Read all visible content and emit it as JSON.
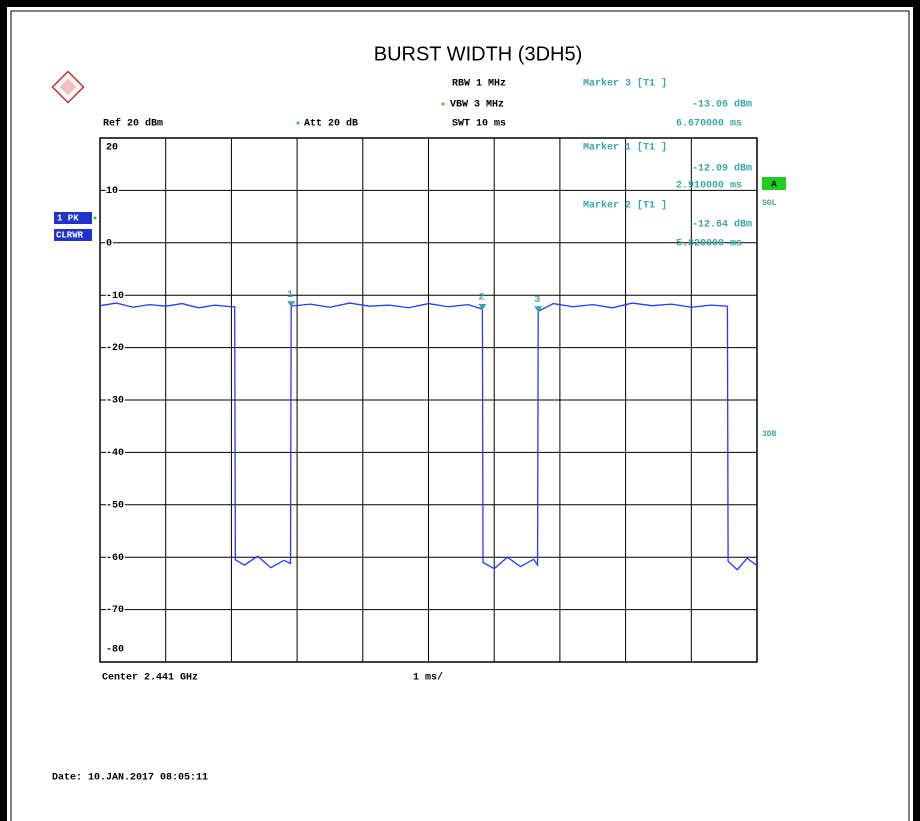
{
  "chart_data": {
    "type": "line",
    "title": "BURST WIDTH (3DH5)",
    "settings": {
      "rbw": "RBW 1 MHz",
      "vbw": "VBW 3 MHz",
      "swt": "SWT 10 ms",
      "ref": "Ref 20 dBm",
      "att": "Att 20 dB"
    },
    "trace_mode": "CLRWR",
    "status": [
      "A",
      "SGL",
      "3DB"
    ],
    "center": "Center 2.441 GHz",
    "span": "1 ms/",
    "date": "Date: 10.JAN.2017  08:05:11",
    "xlim": [
      0,
      10
    ],
    "xticks": [
      0,
      1,
      2,
      3,
      4,
      5,
      6,
      7,
      8,
      9,
      10
    ],
    "ylim": [
      -80,
      20
    ],
    "yticks": [
      20,
      10,
      0,
      -10,
      -20,
      -30,
      -40,
      -50,
      -60,
      -70,
      -80
    ],
    "grid": true,
    "x": [
      0,
      0.25,
      0.5,
      0.75,
      1,
      1.25,
      1.5,
      1.75,
      2,
      2.05,
      2.06,
      2.2,
      2.4,
      2.6,
      2.8,
      2.9,
      2.91,
      3.2,
      3.5,
      3.8,
      4.1,
      4.4,
      4.7,
      5,
      5.3,
      5.6,
      5.82,
      5.83,
      6,
      6.2,
      6.4,
      6.6,
      6.66,
      6.67,
      6.9,
      7.2,
      7.5,
      7.8,
      8.1,
      8.4,
      8.7,
      9,
      9.3,
      9.55,
      9.56,
      9.7,
      9.85,
      10
    ],
    "series": [
      {
        "name": "1 PK",
        "color": "#1f3cff",
        "values": [
          -12,
          -11.5,
          -12.3,
          -11.8,
          -12.1,
          -11.6,
          -12.4,
          -11.9,
          -12.2,
          -12.2,
          -60.5,
          -61.5,
          -59.8,
          -62,
          -60.6,
          -61.2,
          -12.09,
          -11.7,
          -12.3,
          -11.5,
          -12.1,
          -11.9,
          -12.4,
          -11.6,
          -12.2,
          -11.8,
          -12.64,
          -61,
          -62.2,
          -60,
          -61.8,
          -60.4,
          -61.5,
          -13.06,
          -11.6,
          -12.2,
          -11.8,
          -12.4,
          -11.5,
          -12,
          -11.7,
          -12.3,
          -11.9,
          -12.1,
          -60.8,
          -62.4,
          -60.2,
          -61.6
        ]
      }
    ],
    "markers": [
      {
        "label": "1",
        "heading": "Marker 1 [T1 ]",
        "x": 2.91,
        "value": -12.09,
        "value_label": "-12.09 dBm",
        "x_label": "2.910000 ms"
      },
      {
        "label": "2",
        "heading": "Marker 2 [T1 ]",
        "x": 5.82,
        "value": -12.64,
        "value_label": "-12.64 dBm",
        "x_label": "5.820000 ms"
      },
      {
        "label": "3",
        "heading": "Marker 3 [T1 ]",
        "x": 6.67,
        "value": -13.06,
        "value_label": "-13.06 dBm",
        "x_label": "6.670000 ms"
      }
    ]
  }
}
